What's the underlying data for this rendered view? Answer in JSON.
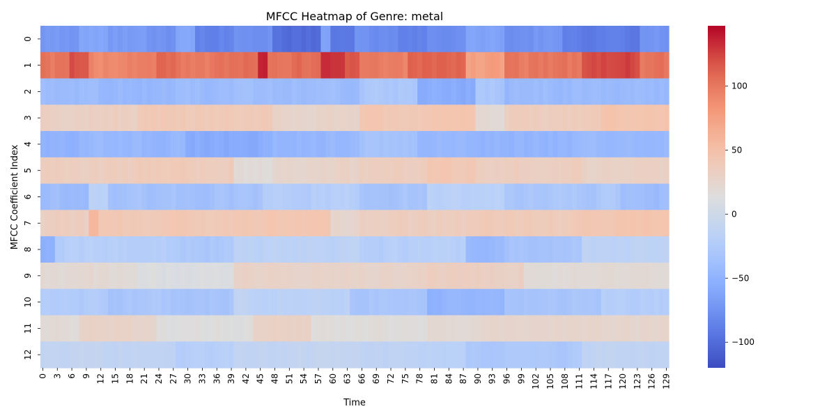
{
  "chart_data": {
    "type": "heatmap",
    "title": "MFCC Heatmap of Genre: metal",
    "xlabel": "Time",
    "ylabel": "MFCC Coefficient Index",
    "colormap": "coolwarm",
    "vmin": -120,
    "vmax": 147,
    "n_time": 130,
    "x_ticks": [
      0,
      3,
      6,
      9,
      12,
      15,
      18,
      21,
      24,
      27,
      30,
      33,
      36,
      39,
      42,
      45,
      48,
      51,
      54,
      57,
      60,
      63,
      66,
      69,
      72,
      75,
      78,
      81,
      84,
      87,
      90,
      93,
      96,
      99,
      102,
      105,
      108,
      111,
      114,
      117,
      120,
      123,
      126,
      129
    ],
    "y_ticks": [
      0,
      1,
      2,
      3,
      4,
      5,
      6,
      7,
      8,
      9,
      10,
      11,
      12
    ],
    "colorbar_ticks": [
      -100,
      -50,
      0,
      50,
      100
    ],
    "colorbar_labels": [
      "−100",
      "−50",
      "0",
      "50",
      "100"
    ],
    "rows": [
      {
        "index": 0,
        "mean": -75,
        "range": 14,
        "segments": [
          {
            "from": 0,
            "to": 8,
            "v": -70
          },
          {
            "from": 8,
            "to": 14,
            "v": -62
          },
          {
            "from": 14,
            "to": 22,
            "v": -68
          },
          {
            "from": 22,
            "to": 28,
            "v": -75
          },
          {
            "from": 28,
            "to": 32,
            "v": -58
          },
          {
            "from": 32,
            "to": 40,
            "v": -85
          },
          {
            "from": 40,
            "to": 48,
            "v": -75
          },
          {
            "from": 48,
            "to": 58,
            "v": -100
          },
          {
            "from": 58,
            "to": 60,
            "v": -65
          },
          {
            "from": 60,
            "to": 65,
            "v": -95
          },
          {
            "from": 65,
            "to": 74,
            "v": -78
          },
          {
            "from": 74,
            "to": 80,
            "v": -88
          },
          {
            "from": 80,
            "to": 88,
            "v": -75
          },
          {
            "from": 88,
            "to": 96,
            "v": -62
          },
          {
            "from": 96,
            "to": 102,
            "v": -78
          },
          {
            "from": 102,
            "to": 108,
            "v": -72
          },
          {
            "from": 108,
            "to": 124,
            "v": -92
          },
          {
            "from": 124,
            "to": 130,
            "v": -72
          }
        ]
      },
      {
        "index": 1,
        "mean": 100,
        "range": 18,
        "segments": [
          {
            "from": 0,
            "to": 6,
            "v": 100
          },
          {
            "from": 6,
            "to": 10,
            "v": 118
          },
          {
            "from": 10,
            "to": 24,
            "v": 92
          },
          {
            "from": 24,
            "to": 28,
            "v": 108
          },
          {
            "from": 28,
            "to": 42,
            "v": 100
          },
          {
            "from": 42,
            "to": 45,
            "v": 110
          },
          {
            "from": 45,
            "to": 47,
            "v": 140
          },
          {
            "from": 47,
            "to": 58,
            "v": 105
          },
          {
            "from": 58,
            "to": 63,
            "v": 130
          },
          {
            "from": 63,
            "to": 66,
            "v": 112
          },
          {
            "from": 66,
            "to": 76,
            "v": 92
          },
          {
            "from": 76,
            "to": 88,
            "v": 112
          },
          {
            "from": 88,
            "to": 96,
            "v": 75
          },
          {
            "from": 96,
            "to": 112,
            "v": 100
          },
          {
            "from": 112,
            "to": 124,
            "v": 122
          },
          {
            "from": 124,
            "to": 130,
            "v": 100
          }
        ]
      },
      {
        "index": 2,
        "mean": -40,
        "range": 14,
        "segments": [
          {
            "from": 0,
            "to": 12,
            "v": -40
          },
          {
            "from": 12,
            "to": 28,
            "v": -45
          },
          {
            "from": 28,
            "to": 66,
            "v": -40
          },
          {
            "from": 66,
            "to": 78,
            "v": -30
          },
          {
            "from": 78,
            "to": 90,
            "v": -55
          },
          {
            "from": 90,
            "to": 96,
            "v": -30
          },
          {
            "from": 96,
            "to": 130,
            "v": -42
          }
        ]
      },
      {
        "index": 3,
        "mean": 35,
        "range": 12,
        "segments": [
          {
            "from": 0,
            "to": 20,
            "v": 32
          },
          {
            "from": 20,
            "to": 48,
            "v": 40
          },
          {
            "from": 48,
            "to": 66,
            "v": 28
          },
          {
            "from": 66,
            "to": 80,
            "v": 42
          },
          {
            "from": 80,
            "to": 90,
            "v": 45
          },
          {
            "from": 90,
            "to": 96,
            "v": 20
          },
          {
            "from": 96,
            "to": 116,
            "v": 35
          },
          {
            "from": 116,
            "to": 130,
            "v": 45
          }
        ]
      },
      {
        "index": 4,
        "mean": -45,
        "range": 14,
        "segments": [
          {
            "from": 0,
            "to": 8,
            "v": -50
          },
          {
            "from": 8,
            "to": 30,
            "v": -45
          },
          {
            "from": 30,
            "to": 48,
            "v": -55
          },
          {
            "from": 48,
            "to": 66,
            "v": -45
          },
          {
            "from": 66,
            "to": 78,
            "v": -35
          },
          {
            "from": 78,
            "to": 90,
            "v": -45
          },
          {
            "from": 90,
            "to": 112,
            "v": -48
          },
          {
            "from": 112,
            "to": 130,
            "v": -45
          }
        ]
      },
      {
        "index": 5,
        "mean": 30,
        "range": 12,
        "segments": [
          {
            "from": 0,
            "to": 20,
            "v": 35
          },
          {
            "from": 20,
            "to": 40,
            "v": 38
          },
          {
            "from": 40,
            "to": 48,
            "v": 18
          },
          {
            "from": 48,
            "to": 66,
            "v": 28
          },
          {
            "from": 66,
            "to": 80,
            "v": 35
          },
          {
            "from": 80,
            "to": 90,
            "v": 42
          },
          {
            "from": 90,
            "to": 112,
            "v": 35
          },
          {
            "from": 112,
            "to": 130,
            "v": 30
          }
        ]
      },
      {
        "index": 6,
        "mean": -30,
        "range": 14,
        "segments": [
          {
            "from": 0,
            "to": 10,
            "v": -40
          },
          {
            "from": 10,
            "to": 14,
            "v": -15
          },
          {
            "from": 14,
            "to": 46,
            "v": -35
          },
          {
            "from": 46,
            "to": 66,
            "v": -22
          },
          {
            "from": 66,
            "to": 80,
            "v": -32
          },
          {
            "from": 80,
            "to": 96,
            "v": -18
          },
          {
            "from": 96,
            "to": 120,
            "v": -30
          },
          {
            "from": 120,
            "to": 130,
            "v": -40
          }
        ]
      },
      {
        "index": 7,
        "mean": 35,
        "range": 12,
        "segments": [
          {
            "from": 0,
            "to": 10,
            "v": 32
          },
          {
            "from": 10,
            "to": 12,
            "v": 55
          },
          {
            "from": 12,
            "to": 40,
            "v": 40
          },
          {
            "from": 40,
            "to": 60,
            "v": 45
          },
          {
            "from": 60,
            "to": 66,
            "v": 25
          },
          {
            "from": 66,
            "to": 90,
            "v": 35
          },
          {
            "from": 90,
            "to": 112,
            "v": 38
          },
          {
            "from": 112,
            "to": 130,
            "v": 45
          }
        ]
      },
      {
        "index": 8,
        "mean": -22,
        "range": 12,
        "segments": [
          {
            "from": 0,
            "to": 3,
            "v": -50
          },
          {
            "from": 3,
            "to": 26,
            "v": -22
          },
          {
            "from": 26,
            "to": 40,
            "v": -28
          },
          {
            "from": 40,
            "to": 66,
            "v": -15
          },
          {
            "from": 66,
            "to": 88,
            "v": -20
          },
          {
            "from": 88,
            "to": 96,
            "v": -42
          },
          {
            "from": 96,
            "to": 112,
            "v": -32
          },
          {
            "from": 112,
            "to": 130,
            "v": -15
          }
        ]
      },
      {
        "index": 9,
        "mean": 20,
        "range": 10,
        "segments": [
          {
            "from": 0,
            "to": 20,
            "v": 20
          },
          {
            "from": 20,
            "to": 40,
            "v": 12
          },
          {
            "from": 40,
            "to": 80,
            "v": 28
          },
          {
            "from": 80,
            "to": 100,
            "v": 32
          },
          {
            "from": 100,
            "to": 130,
            "v": 18
          }
        ]
      },
      {
        "index": 10,
        "mean": -28,
        "range": 12,
        "segments": [
          {
            "from": 0,
            "to": 14,
            "v": -25
          },
          {
            "from": 14,
            "to": 40,
            "v": -32
          },
          {
            "from": 40,
            "to": 64,
            "v": -15
          },
          {
            "from": 64,
            "to": 80,
            "v": -30
          },
          {
            "from": 80,
            "to": 96,
            "v": -48
          },
          {
            "from": 96,
            "to": 116,
            "v": -32
          },
          {
            "from": 116,
            "to": 130,
            "v": -22
          }
        ]
      },
      {
        "index": 11,
        "mean": 20,
        "range": 10,
        "segments": [
          {
            "from": 0,
            "to": 8,
            "v": 18
          },
          {
            "from": 8,
            "to": 24,
            "v": 28
          },
          {
            "from": 24,
            "to": 44,
            "v": 15
          },
          {
            "from": 44,
            "to": 56,
            "v": 30
          },
          {
            "from": 56,
            "to": 80,
            "v": 15
          },
          {
            "from": 80,
            "to": 96,
            "v": 22
          },
          {
            "from": 96,
            "to": 130,
            "v": 25
          }
        ]
      },
      {
        "index": 12,
        "mean": -15,
        "range": 10,
        "segments": [
          {
            "from": 0,
            "to": 28,
            "v": -12
          },
          {
            "from": 28,
            "to": 40,
            "v": -20
          },
          {
            "from": 40,
            "to": 66,
            "v": -10
          },
          {
            "from": 66,
            "to": 88,
            "v": -15
          },
          {
            "from": 88,
            "to": 112,
            "v": -28
          },
          {
            "from": 112,
            "to": 130,
            "v": -12
          }
        ]
      }
    ]
  }
}
